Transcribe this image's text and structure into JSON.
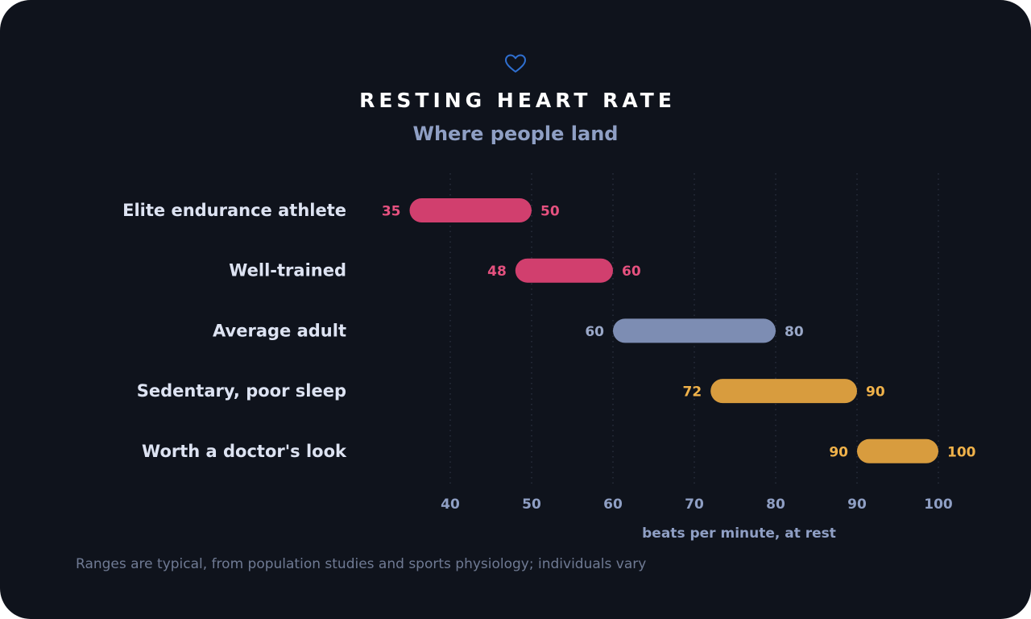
{
  "header": {
    "icon": "heart-outline-icon",
    "title": "RESTING HEART RATE",
    "subtitle": "Where people land"
  },
  "footnote": "Ranges are typical, from population studies and sports physiology; individuals vary",
  "colors": {
    "background": "#0f131c",
    "accent_icon": "#2f6fd0",
    "grid": "#2e3545",
    "tick_label": "#8f9fc4",
    "category_label": "#dde3f2"
  },
  "chart_data": {
    "type": "bar",
    "orientation": "horizontal-range",
    "xlabel": "beats per minute, at rest",
    "xlim": [
      30,
      103
    ],
    "xticks": [
      40,
      50,
      60,
      70,
      80,
      90,
      100
    ],
    "grid": "vertical dotted",
    "ranges": [
      {
        "label": "Elite endurance athlete",
        "low": 35,
        "high": 50,
        "color": "#d13f6e",
        "label_color": "#e5517f"
      },
      {
        "label": "Well-trained",
        "low": 48,
        "high": 60,
        "color": "#d13f6e",
        "label_color": "#e5517f"
      },
      {
        "label": "Average adult",
        "low": 60,
        "high": 80,
        "color": "#7d8db3",
        "label_color": "#9aa8c8"
      },
      {
        "label": "Sedentary, poor sleep",
        "low": 72,
        "high": 90,
        "color": "#d89c3e",
        "label_color": "#f0b24a"
      },
      {
        "label": "Worth a doctor's look",
        "low": 90,
        "high": 100,
        "color": "#d89c3e",
        "label_color": "#f0b24a"
      }
    ]
  }
}
